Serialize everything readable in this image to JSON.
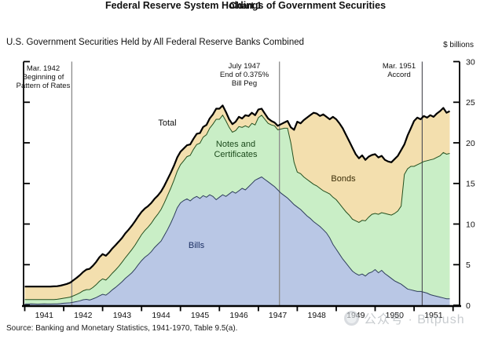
{
  "page": {
    "chart_label": "Chart 1",
    "title": "Federal Reserve System Holdings of Government Securities",
    "subtitle": "U.S. Government Securities Held by All Federal Reserve Banks Combined",
    "unit_label": "$ billions",
    "source": "Source:  Banking and Monetary Statistics, 1941-1970, Table 9.5(a).",
    "watermark_text": "公众号 · Bitpush"
  },
  "chart_data": {
    "type": "area",
    "stacked": true,
    "title": "Federal Reserve System Holdings of Government Securities",
    "x_unit": "months from Jan 1941",
    "x_tick_labels": [
      "1941",
      "1942",
      "1943",
      "1944",
      "1945",
      "1946",
      "1947",
      "1948",
      "1949",
      "1950",
      "1951"
    ],
    "y_ticks": [
      0,
      5,
      10,
      15,
      20,
      25,
      30
    ],
    "ylim": [
      0,
      30
    ],
    "ylabel": "$ billions",
    "grid": false,
    "legend_position": "inline-labels",
    "labels": {
      "total": "Total",
      "notes_line1": "Notes and",
      "notes_line2": "Certificates",
      "bills": "Bills",
      "bonds": "Bonds"
    },
    "series": [
      {
        "name": "Bills",
        "color": "#b9c7e5",
        "edge": "#2f3f5c",
        "values": [
          0.15,
          0.15,
          0.16,
          0.15,
          0.14,
          0.15,
          0.16,
          0.15,
          0.15,
          0.16,
          0.17,
          0.2,
          0.25,
          0.28,
          0.3,
          0.38,
          0.45,
          0.55,
          0.68,
          0.72,
          0.65,
          0.78,
          0.95,
          1.15,
          1.35,
          1.25,
          1.55,
          1.9,
          2.2,
          2.55,
          2.9,
          3.3,
          3.65,
          4.0,
          4.45,
          5.0,
          5.5,
          5.9,
          6.2,
          6.6,
          7.1,
          7.5,
          7.9,
          8.6,
          9.3,
          10.1,
          11.0,
          12.0,
          12.6,
          12.9,
          13.1,
          12.85,
          13.2,
          13.4,
          13.15,
          13.5,
          13.3,
          13.6,
          13.4,
          13.0,
          13.3,
          13.6,
          13.4,
          13.7,
          14.0,
          13.8,
          14.1,
          14.4,
          14.2,
          14.6,
          15.0,
          15.4,
          15.6,
          15.8,
          15.5,
          15.2,
          14.9,
          14.6,
          14.2,
          13.8,
          13.5,
          13.2,
          12.8,
          12.4,
          12.1,
          11.8,
          11.4,
          11.0,
          10.7,
          10.3,
          10.0,
          9.7,
          9.3,
          8.9,
          8.3,
          7.5,
          6.9,
          6.3,
          5.7,
          5.2,
          4.7,
          4.2,
          3.9,
          3.7,
          3.85,
          3.6,
          3.95,
          4.1,
          4.4,
          4.0,
          4.3,
          3.9,
          3.6,
          3.3,
          3.0,
          2.8,
          2.6,
          2.3,
          2.0,
          1.9,
          1.8,
          1.7,
          1.7,
          1.6,
          1.5,
          1.3,
          1.2,
          1.1,
          1.0,
          0.9,
          0.8,
          0.8
        ]
      },
      {
        "name": "Notes and Certificates",
        "color": "#c9eec6",
        "edge": "#24501f",
        "values": [
          0.55,
          0.55,
          0.54,
          0.55,
          0.56,
          0.55,
          0.54,
          0.55,
          0.56,
          0.55,
          0.56,
          0.6,
          0.62,
          0.65,
          0.7,
          0.78,
          0.88,
          0.98,
          1.1,
          1.2,
          1.28,
          1.4,
          1.58,
          1.8,
          1.9,
          1.85,
          1.95,
          2.05,
          2.15,
          2.25,
          2.4,
          2.55,
          2.7,
          2.85,
          2.95,
          3.05,
          3.2,
          3.3,
          3.4,
          3.5,
          3.6,
          3.7,
          3.9,
          4.0,
          4.2,
          4.3,
          4.4,
          4.5,
          4.7,
          4.9,
          5.2,
          5.6,
          6.0,
          6.4,
          6.8,
          7.2,
          7.7,
          8.2,
          8.9,
          9.9,
          9.6,
          9.8,
          9.3,
          8.2,
          7.3,
          7.7,
          7.9,
          7.5,
          7.9,
          7.3,
          7.4,
          6.8,
          7.5,
          7.6,
          7.4,
          7.2,
          7.3,
          7.5,
          7.4,
          7.9,
          8.3,
          8.6,
          7.2,
          5.2,
          4.3,
          4.4,
          4.4,
          4.5,
          4.5,
          4.6,
          4.7,
          4.7,
          4.8,
          5.0,
          5.4,
          5.8,
          6.1,
          6.2,
          6.3,
          6.3,
          6.4,
          6.4,
          6.5,
          6.5,
          6.6,
          6.8,
          6.9,
          7.1,
          6.9,
          7.2,
          7.1,
          7.4,
          7.6,
          7.8,
          8.3,
          8.8,
          9.6,
          13.8,
          14.8,
          15.2,
          15.3,
          15.6,
          15.8,
          16.1,
          16.3,
          16.6,
          16.8,
          17.1,
          17.4,
          17.9,
          17.8,
          17.9
        ]
      },
      {
        "name": "Bonds",
        "color": "#f3dfae",
        "edge": "#000000",
        "values": [
          1.6,
          1.6,
          1.6,
          1.6,
          1.6,
          1.6,
          1.6,
          1.6,
          1.6,
          1.62,
          1.62,
          1.62,
          1.65,
          1.7,
          1.78,
          1.92,
          2.05,
          2.18,
          2.32,
          2.48,
          2.55,
          2.68,
          2.8,
          2.95,
          3.05,
          3.0,
          3.0,
          3.05,
          3.05,
          3.05,
          3.0,
          3.0,
          2.95,
          2.95,
          2.95,
          2.9,
          2.8,
          2.7,
          2.6,
          2.5,
          2.4,
          2.3,
          2.2,
          2.1,
          2.0,
          1.9,
          1.8,
          1.7,
          1.6,
          1.5,
          1.4,
          1.35,
          1.3,
          1.3,
          1.25,
          1.25,
          1.2,
          1.2,
          1.2,
          1.3,
          1.3,
          1.2,
          1.1,
          1.0,
          1.0,
          1.1,
          1.2,
          1.1,
          1.3,
          1.4,
          1.3,
          1.2,
          1.0,
          0.8,
          0.7,
          0.6,
          0.5,
          0.4,
          0.5,
          0.6,
          0.7,
          0.9,
          1.9,
          4.0,
          6.2,
          6.2,
          7.0,
          7.6,
          8.2,
          8.8,
          8.9,
          8.9,
          9.4,
          9.3,
          9.2,
          9.9,
          9.9,
          9.9,
          9.8,
          9.5,
          9.1,
          8.8,
          8.2,
          7.9,
          8.0,
          7.5,
          7.45,
          7.3,
          7.3,
          7.0,
          7.0,
          6.6,
          6.5,
          6.5,
          6.7,
          6.8,
          6.9,
          3.7,
          4.1,
          4.7,
          5.6,
          5.8,
          5.4,
          5.6,
          5.3,
          5.5,
          5.2,
          5.4,
          5.5,
          5.5,
          5.1,
          5.2
        ]
      }
    ],
    "total_line": {
      "name": "Total",
      "color": "#000000"
    },
    "annotations": [
      {
        "month": 14.5,
        "color": "#8a8a8a",
        "lines": [
          "Mar. 1942",
          "Beginning of",
          "Pattern of Rates"
        ]
      },
      {
        "month": 78.5,
        "color": "#8a8a8a",
        "lines": [
          "July 1947",
          "End of 0.375%",
          "Bill Peg"
        ]
      },
      {
        "month": 122.5,
        "color": "#4a4a52",
        "lines": [
          "Mar. 1951",
          "Accord"
        ]
      }
    ]
  }
}
